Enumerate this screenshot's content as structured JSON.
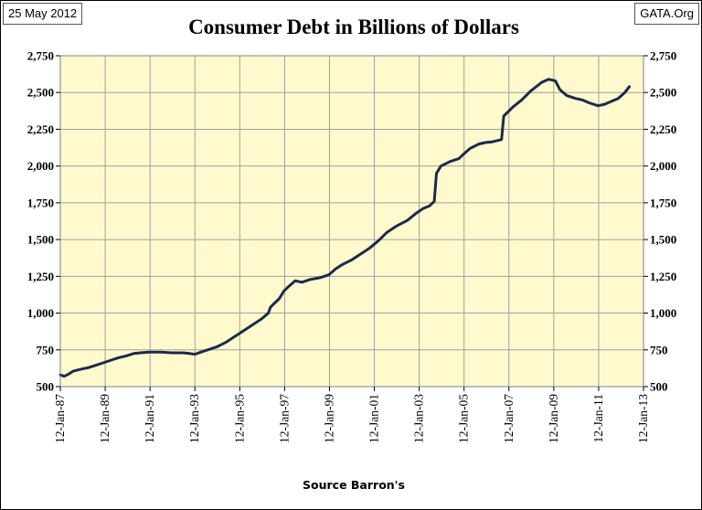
{
  "header": {
    "date": "25 May 2012",
    "source": "GATA.Org"
  },
  "chart_data": {
    "type": "line",
    "title": "Consumer Debt in Billions of Dollars",
    "xlabel": "Source Barron's",
    "ylabel": "",
    "ylim": [
      500,
      2750
    ],
    "y_ticks": [
      500,
      750,
      1000,
      1250,
      1500,
      1750,
      2000,
      2250,
      2500,
      2750
    ],
    "y_tick_labels": [
      "500",
      "750",
      "1,000",
      "1,250",
      "1,500",
      "1,750",
      "2,000",
      "2,250",
      "2,500",
      "2,750"
    ],
    "x_range": [
      1987.03,
      2013.03
    ],
    "x_ticks": [
      1987.03,
      1989.03,
      1991.03,
      1993.03,
      1995.03,
      1997.03,
      1999.03,
      2001.03,
      2003.03,
      2005.03,
      2007.03,
      2009.03,
      2011.03,
      2013.03
    ],
    "x_tick_labels": [
      "12-Jan-87",
      "12-Jan-89",
      "12-Jan-91",
      "12-Jan-93",
      "12-Jan-95",
      "12-Jan-97",
      "12-Jan-99",
      "12-Jan-01",
      "12-Jan-03",
      "12-Jan-05",
      "12-Jan-07",
      "12-Jan-09",
      "12-Jan-11",
      "12-Jan-13"
    ],
    "grid": true,
    "axes": "left and right",
    "colors": {
      "line": "#1c2a4a",
      "plot_background": "#fffacd",
      "grid": "#a0a0a0"
    },
    "series": [
      {
        "x": [
          1987.03,
          1987.2,
          1987.4,
          1987.6,
          1988.0,
          1988.3,
          1988.7,
          1989.0,
          1989.3,
          1989.6,
          1990.0,
          1990.3,
          1990.6,
          1991.0,
          1991.5,
          1992.0,
          1992.5,
          1992.8,
          1993.03,
          1993.3,
          1993.6,
          1994.0,
          1994.4,
          1994.8,
          1995.2,
          1995.6,
          1996.0,
          1996.3,
          1996.4,
          1996.8,
          1997.0,
          1997.2,
          1997.5,
          1997.8,
          1998.2,
          1998.6,
          1999.0,
          1999.3,
          1999.6,
          2000.0,
          2000.4,
          2000.8,
          2001.2,
          2001.6,
          2002.0,
          2002.5,
          2002.9,
          2003.2,
          2003.5,
          2003.7,
          2003.8,
          2004.0,
          2004.4,
          2004.8,
          2005.0,
          2005.3,
          2005.7,
          2006.0,
          2006.3,
          2006.7,
          2006.8,
          2007.2,
          2007.6,
          2008.0,
          2008.5,
          2008.8,
          2009.1,
          2009.3,
          2009.6,
          2010.0,
          2010.3,
          2010.6,
          2011.0,
          2011.3,
          2011.6,
          2011.9,
          2012.2,
          2012.4
        ],
        "y": [
          580,
          570,
          585,
          605,
          620,
          630,
          650,
          665,
          680,
          695,
          710,
          725,
          730,
          735,
          735,
          730,
          730,
          725,
          720,
          735,
          750,
          770,
          800,
          840,
          880,
          920,
          960,
          1000,
          1040,
          1100,
          1150,
          1180,
          1220,
          1210,
          1230,
          1240,
          1260,
          1300,
          1330,
          1360,
          1400,
          1440,
          1490,
          1550,
          1590,
          1630,
          1680,
          1710,
          1730,
          1760,
          1950,
          2000,
          2030,
          2050,
          2080,
          2120,
          2150,
          2160,
          2165,
          2180,
          2340,
          2400,
          2450,
          2510,
          2570,
          2590,
          2580,
          2520,
          2480,
          2460,
          2450,
          2430,
          2410,
          2420,
          2440,
          2460,
          2500,
          2540
        ]
      }
    ]
  }
}
